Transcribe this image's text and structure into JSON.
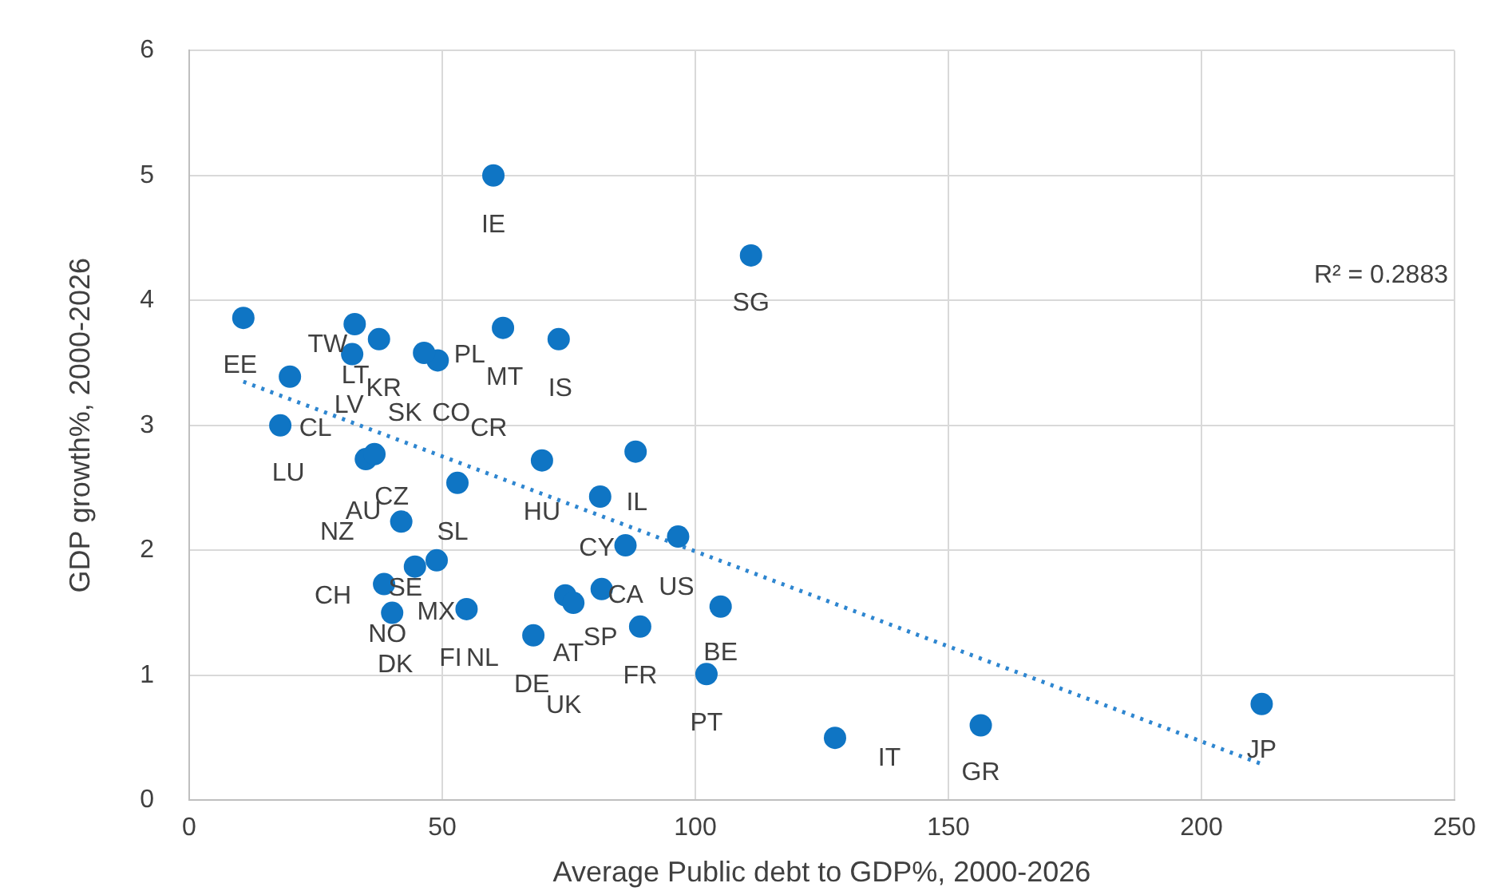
{
  "chart_data": {
    "type": "scatter",
    "xlabel": "Average Public debt to GDP%, 2000-2026",
    "ylabel": "GDP growth%, 2000-2026",
    "xlim": [
      0,
      250
    ],
    "xticks": [
      0,
      50,
      100,
      150,
      200,
      250
    ],
    "ylim": [
      0,
      6
    ],
    "yticks": [
      0,
      1,
      2,
      3,
      4,
      5,
      6
    ],
    "grid": true,
    "legend": false,
    "marker": "circle",
    "series": [
      {
        "color": "#0f75c4",
        "x": [
          10.7,
          32.7,
          37.5,
          32.2,
          19.9,
          18.0,
          34.9,
          36.6,
          41.9,
          53.0,
          44.6,
          48.9,
          38.5,
          40.1,
          54.8,
          49.1,
          46.4,
          62.0,
          73.0,
          60.1,
          111.0,
          69.7,
          81.2,
          88.2,
          86.2,
          96.6,
          81.5,
          74.3,
          75.9,
          68.0,
          89.1,
          105.0,
          102.2,
          127.6,
          156.4,
          211.9
        ],
        "values": [
          3.86,
          3.81,
          3.69,
          3.57,
          3.39,
          3.0,
          2.73,
          2.77,
          2.23,
          2.54,
          1.87,
          1.92,
          1.73,
          1.5,
          1.53,
          3.52,
          3.58,
          3.78,
          3.69,
          5.0,
          4.36,
          2.72,
          2.43,
          2.79,
          2.04,
          2.11,
          1.69,
          1.64,
          1.58,
          1.32,
          1.39,
          1.55,
          1.01,
          0.5,
          0.6,
          0.77
        ]
      },
      {
        "type": "line",
        "color": "#2e86d0",
        "line_style": "dotted",
        "marker": "none",
        "x": [
          10.7,
          211.9
        ],
        "values": [
          3.35,
          0.29
        ]
      }
    ],
    "annotations": [
      {
        "text": "EE",
        "x": 10.7,
        "y": 3.86
      },
      {
        "text": "TW",
        "x": 32.7,
        "y": 3.81
      },
      {
        "text": "KR",
        "x": 37.5,
        "y": 3.69
      },
      {
        "text": "LT",
        "x": 32.2,
        "y": 3.57
      },
      {
        "text": "LV",
        "x": 19.9,
        "y": 3.39
      },
      {
        "text": "CL",
        "x": 18.0,
        "y": 3.0
      },
      {
        "text": "LU",
        "x": 18.0,
        "y": 3.0
      },
      {
        "text": "NZ",
        "x": 34.9,
        "y": 2.73
      },
      {
        "text": "AU",
        "x": 36.6,
        "y": 2.77
      },
      {
        "text": "CZ",
        "x": 41.9,
        "y": 2.23
      },
      {
        "text": "SL",
        "x": 53.0,
        "y": 2.54
      },
      {
        "text": "SE",
        "x": 44.6,
        "y": 1.87
      },
      {
        "text": "CH",
        "x": 38.5,
        "y": 1.73
      },
      {
        "text": "NO",
        "x": 40.1,
        "y": 1.5
      },
      {
        "text": "DK",
        "x": 40.1,
        "y": 1.5
      },
      {
        "text": "MX",
        "x": 54.8,
        "y": 1.53
      },
      {
        "text": "FI",
        "x": 54.8,
        "y": 1.53
      },
      {
        "text": "NL",
        "x": 54.8,
        "y": 1.53
      },
      {
        "text": "PL",
        "x": 49.1,
        "y": 3.52
      },
      {
        "text": "SK",
        "x": 46.4,
        "y": 3.58
      },
      {
        "text": "CO",
        "x": 46.4,
        "y": 3.58
      },
      {
        "text": "CR",
        "x": 49.1,
        "y": 3.52
      },
      {
        "text": "MT",
        "x": 62.0,
        "y": 3.78
      },
      {
        "text": "IS",
        "x": 73.0,
        "y": 3.69
      },
      {
        "text": "IE",
        "x": 60.1,
        "y": 5.0
      },
      {
        "text": "SG",
        "x": 111.0,
        "y": 4.36
      },
      {
        "text": "HU",
        "x": 69.7,
        "y": 2.72
      },
      {
        "text": "IL",
        "x": 81.2,
        "y": 2.43
      },
      {
        "text": "CY",
        "x": 86.2,
        "y": 2.04
      },
      {
        "text": "US",
        "x": 96.6,
        "y": 2.11
      },
      {
        "text": "CA",
        "x": 81.5,
        "y": 1.69
      },
      {
        "text": "AT",
        "x": 74.3,
        "y": 1.64
      },
      {
        "text": "SP",
        "x": 75.9,
        "y": 1.58
      },
      {
        "text": "UK",
        "x": 68.0,
        "y": 1.32
      },
      {
        "text": "DE",
        "x": 68.0,
        "y": 1.32
      },
      {
        "text": "FR",
        "x": 89.1,
        "y": 1.39
      },
      {
        "text": "BE",
        "x": 105.0,
        "y": 1.55
      },
      {
        "text": "PT",
        "x": 102.2,
        "y": 1.01
      },
      {
        "text": "IT",
        "x": 127.6,
        "y": 0.5
      },
      {
        "text": "GR",
        "x": 156.4,
        "y": 0.6
      },
      {
        "text": "JP",
        "x": 211.9,
        "y": 0.77
      },
      "R² = 0.2883"
    ]
  }
}
